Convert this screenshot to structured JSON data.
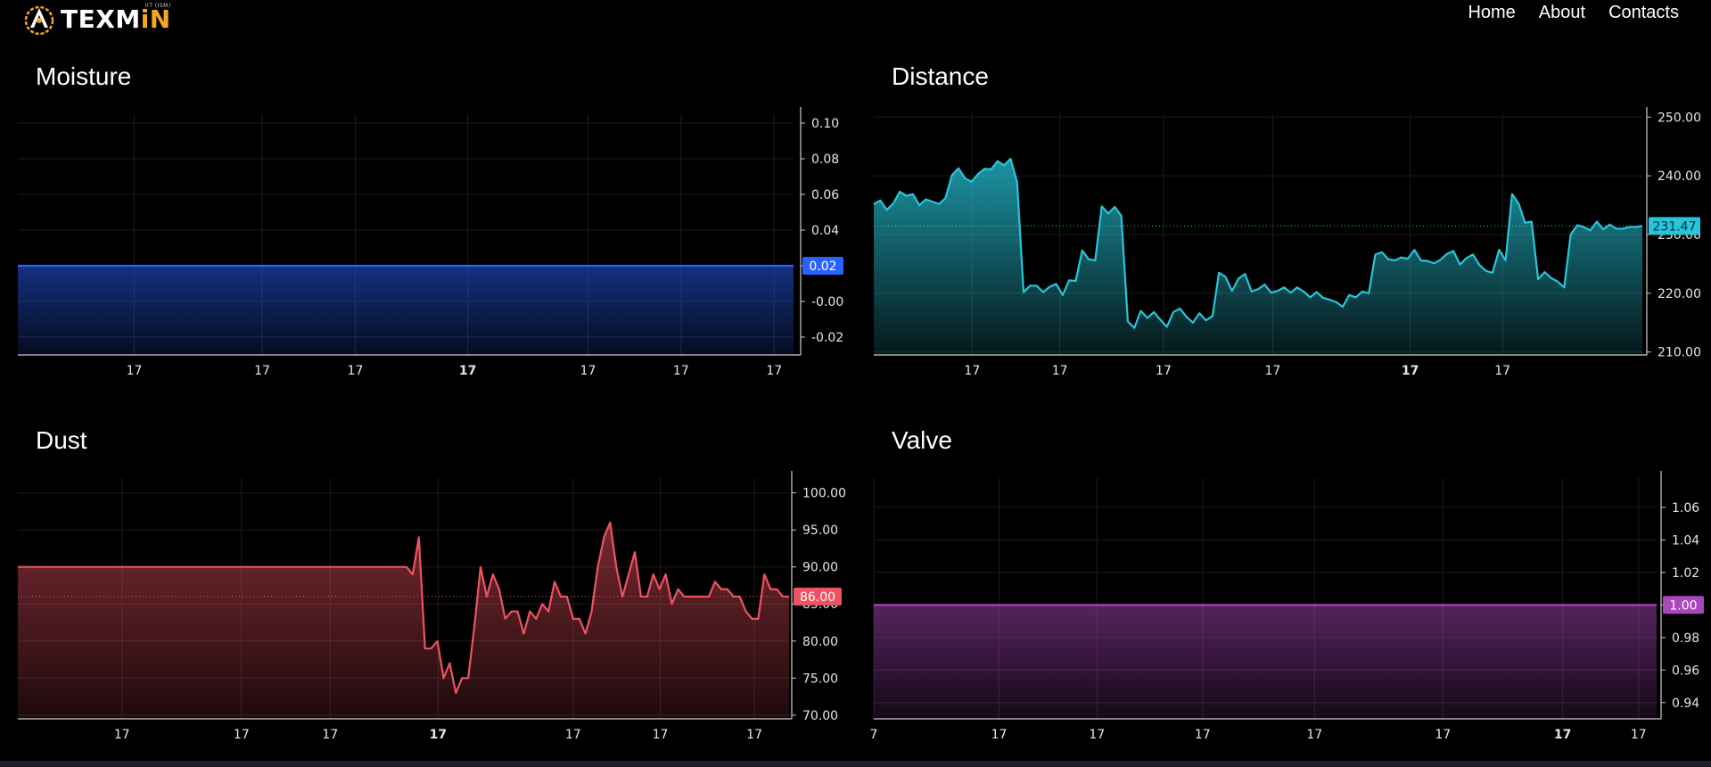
{
  "brand": {
    "name_white": "TEXM",
    "name_orange": "iN",
    "tagline": "IIT (ISM)"
  },
  "nav": {
    "home": "Home",
    "about": "About",
    "contacts": "Contacts"
  },
  "titles": {
    "moisture": "Moisture",
    "distance": "Distance",
    "dust": "Dust",
    "valve": "Valve"
  },
  "chart_data": [
    {
      "id": "moisture",
      "type": "area",
      "title": "Moisture",
      "color": "#2962ff",
      "ylim": [
        -0.03,
        0.105
      ],
      "yticks": [
        "0.10",
        "0.08",
        "0.06",
        "0.04",
        "0.02",
        "-0.00",
        "-0.02"
      ],
      "ytick_values": [
        0.1,
        0.08,
        0.06,
        0.04,
        0.02,
        0.0,
        -0.02
      ],
      "xtick_labels": [
        "17",
        "17",
        "17",
        "17",
        "17",
        "17",
        "17"
      ],
      "last_value": "0.02",
      "series": [
        {
          "values": [
            0.02,
            0.02,
            0.02,
            0.02,
            0.02,
            0.02,
            0.02,
            0.02,
            0.02,
            0.02,
            0.02,
            0.02,
            0.02,
            0.02,
            0.02,
            0.02,
            0.02,
            0.02,
            0.02,
            0.02
          ]
        }
      ]
    },
    {
      "id": "distance",
      "type": "area",
      "title": "Distance",
      "color": "#26c6da",
      "ylim": [
        209.5,
        250.5
      ],
      "yticks": [
        "250.00",
        "240.00",
        "230.00",
        "220.00",
        "210.00"
      ],
      "ytick_values": [
        250,
        240,
        230,
        220,
        210
      ],
      "xtick_labels": [
        "17",
        "17",
        "17",
        "17",
        "17",
        "17"
      ],
      "last_value": "231.47",
      "series": [
        {
          "values": [
            235.2,
            235.8,
            234.2,
            235.3,
            237.3,
            236.6,
            236.9,
            235.0,
            236.0,
            235.6,
            235.2,
            236.2,
            240.1,
            241.3,
            239.6,
            239.0,
            240.3,
            241.2,
            241.1,
            242.5,
            241.8,
            242.9,
            239.0,
            220.2,
            221.3,
            221.3,
            220.2,
            221.1,
            221.6,
            219.7,
            222.2,
            222.1,
            227.3,
            225.8,
            225.6,
            234.8,
            233.6,
            234.7,
            233.2,
            215.2,
            214.1,
            217.0,
            215.8,
            216.8,
            215.5,
            214.3,
            216.8,
            217.4,
            216.0,
            215.0,
            216.6,
            215.4,
            216.1,
            223.5,
            222.8,
            220.4,
            222.5,
            223.3,
            220.3,
            220.7,
            221.5,
            220.1,
            220.4,
            221.0,
            220.1,
            221.0,
            220.3,
            219.3,
            220.2,
            219.2,
            218.9,
            218.5,
            217.7,
            219.7,
            219.3,
            220.3,
            220.0,
            226.6,
            227.0,
            225.8,
            225.6,
            226.1,
            225.9,
            227.4,
            225.6,
            225.5,
            225.1,
            225.7,
            226.7,
            227.2,
            224.9,
            226.0,
            226.6,
            224.8,
            223.8,
            223.5,
            227.4,
            225.6,
            236.9,
            235.3,
            232.0,
            232.2,
            222.4,
            223.6,
            222.6,
            222.0,
            221.0,
            230.0,
            231.6,
            231.3,
            230.7,
            232.2,
            230.9,
            231.7,
            231.0,
            231.0,
            231.3,
            231.3,
            231.47
          ]
        }
      ]
    },
    {
      "id": "dust",
      "type": "area",
      "title": "Dust",
      "color": "#ef5361",
      "ylim": [
        69.5,
        102.0
      ],
      "yticks": [
        "100.00",
        "95.00",
        "90.00",
        "85.00",
        "80.00",
        "75.00",
        "70.00"
      ],
      "ytick_values": [
        100,
        95,
        90,
        85,
        80,
        75,
        70
      ],
      "xtick_labels": [
        "17",
        "17",
        "17",
        "17",
        "17",
        "17",
        "17"
      ],
      "last_value": "86.00",
      "series": [
        {
          "values": [
            90,
            90,
            90,
            90,
            90,
            90,
            90,
            90,
            90,
            90,
            90,
            90,
            90,
            90,
            90,
            90,
            90,
            90,
            90,
            90,
            90,
            90,
            90,
            90,
            90,
            90,
            90,
            90,
            90,
            90,
            90,
            90,
            90,
            90,
            90,
            90,
            90,
            90,
            90,
            90,
            90,
            90,
            90,
            90,
            90,
            90,
            90,
            90,
            90,
            90,
            90,
            90,
            90,
            90,
            90,
            90,
            90,
            90,
            90,
            90,
            90,
            90,
            90,
            90,
            89.0,
            94.0,
            79.0,
            79.0,
            80.0,
            75.0,
            77.0,
            73.0,
            75.0,
            75.0,
            82.0,
            90.0,
            86.0,
            89.0,
            87.0,
            83.0,
            84.0,
            84.0,
            81.0,
            84.0,
            83.0,
            85.0,
            84.0,
            88.0,
            86.0,
            86.0,
            83.0,
            83.0,
            81.0,
            84.0,
            90.0,
            94.0,
            96.0,
            90.0,
            86.0,
            89.0,
            92.0,
            86.0,
            86.0,
            89.0,
            87.0,
            89.0,
            85.0,
            87.0,
            86.0,
            86.0,
            86.0,
            86.0,
            86.0,
            88.0,
            87.0,
            87.0,
            86.0,
            86.0,
            84.0,
            83.0,
            83.0,
            89.0,
            87.0,
            87.0,
            86.0,
            86.0
          ]
        }
      ]
    },
    {
      "id": "valve",
      "type": "area",
      "title": "Valve",
      "color": "#ab47bc",
      "ylim": [
        0.93,
        1.078
      ],
      "yticks": [
        "1.06",
        "1.04",
        "1.02",
        "1.00",
        "0.98",
        "0.96",
        "0.94"
      ],
      "ytick_values": [
        1.06,
        1.04,
        1.02,
        1.0,
        0.98,
        0.96,
        0.94
      ],
      "xtick_labels": [
        "7",
        "17",
        "17",
        "17",
        "17",
        "17",
        "17",
        "17"
      ],
      "last_value": "1.00",
      "series": [
        {
          "values": [
            1,
            1,
            1,
            1,
            1,
            1,
            1,
            1,
            1,
            1,
            1,
            1,
            1,
            1,
            1,
            1,
            1,
            1,
            1,
            1
          ]
        }
      ]
    }
  ]
}
